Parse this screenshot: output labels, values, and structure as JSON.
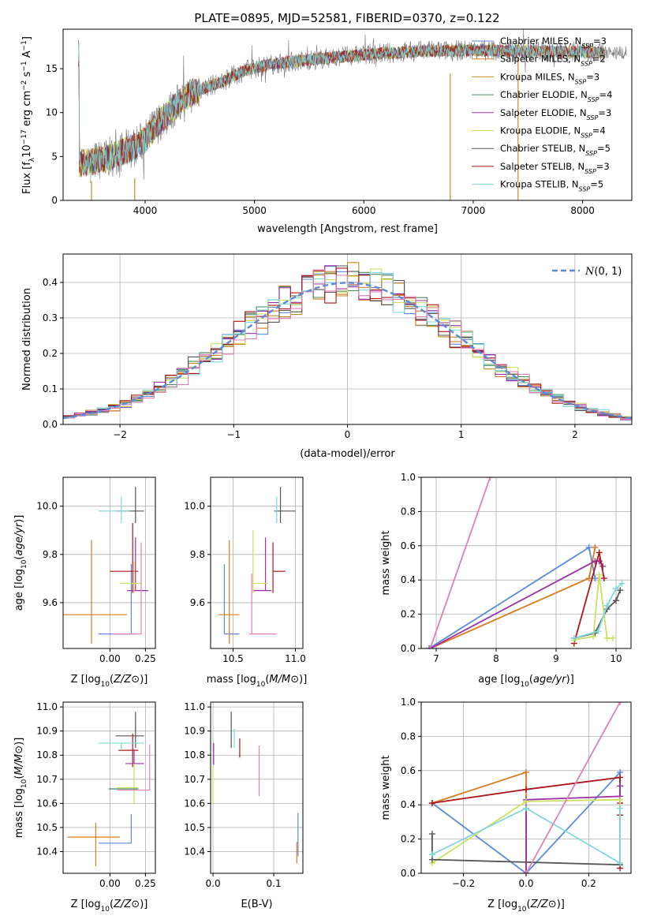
{
  "figure_title": "PLATE=0895, MJD=52581, FIBERID=0370, z=0.122",
  "colors": {
    "Chabrier MILES": "#5b8bd8",
    "Salpeter MILES": "#d97b1e",
    "Kroupa MILES": "#c08a2a",
    "Chabrier ELODIE": "#4f8a5f",
    "Salpeter ELODIE": "#9b30a8",
    "Kroupa ELODIE": "#cbe060",
    "Chabrier STELIB": "#555555",
    "Salpeter STELIB": "#b0151a",
    "Kroupa STELIB": "#7fd8dc",
    "pink": "#e07fb5",
    "grid": "#b0b0b0"
  },
  "chart_data": [
    {
      "id": "spectrum",
      "type": "line",
      "xlabel": "wavelength [Angstrom, rest frame]",
      "ylabel": "Flux [fλ10⁻¹⁷ erg cm⁻² s⁻¹ A⁻¹]",
      "xlim": [
        3250,
        8450
      ],
      "ylim": [
        0,
        19.5
      ],
      "xticks": [
        4000,
        5000,
        6000,
        7000,
        8000
      ],
      "yticks": [
        0,
        5,
        10,
        15
      ],
      "grid": false,
      "legend_position": "top-right",
      "legend": [
        {
          "label": "Chabrier MILES, N",
          "sub": "SSP",
          "eq": "=3",
          "color": "#5b8bd8"
        },
        {
          "label": "Salpeter MILES, N",
          "sub": "SSP",
          "eq": "=2",
          "color": "#d97b1e"
        },
        {
          "label": "Kroupa MILES, N",
          "sub": "SSP",
          "eq": "=3",
          "color": "#c08a2a"
        },
        {
          "label": "Chabrier ELODIE, N",
          "sub": "SSP",
          "eq": "=4",
          "color": "#4f8a5f"
        },
        {
          "label": "Salpeter ELODIE, N",
          "sub": "SSP",
          "eq": "=3",
          "color": "#9b30a8"
        },
        {
          "label": "Kroupa ELODIE, N",
          "sub": "SSP",
          "eq": "=4",
          "color": "#cbe060"
        },
        {
          "label": "Chabrier STELIB, N",
          "sub": "SSP",
          "eq": "=5",
          "color": "#555555"
        },
        {
          "label": "Salpeter STELIB, N",
          "sub": "SSP",
          "eq": "=3",
          "color": "#b0151a"
        },
        {
          "label": "Kroupa STELIB, N",
          "sub": "SSP",
          "eq": "=5",
          "color": "#7fd8dc"
        }
      ],
      "continuum": [
        [
          3400,
          4.2
        ],
        [
          3600,
          4.6
        ],
        [
          3700,
          5.0
        ],
        [
          3800,
          5.6
        ],
        [
          3900,
          6.1
        ],
        [
          4000,
          6.9
        ],
        [
          4100,
          8.6
        ],
        [
          4200,
          9.8
        ],
        [
          4300,
          11.0
        ],
        [
          4400,
          12.0
        ],
        [
          4500,
          12.6
        ],
        [
          4600,
          13.1
        ],
        [
          4700,
          13.4
        ],
        [
          4800,
          14.2
        ],
        [
          4900,
          14.7
        ],
        [
          5000,
          15.1
        ],
        [
          5200,
          15.6
        ],
        [
          5500,
          16.0
        ],
        [
          6000,
          16.6
        ],
        [
          6500,
          17.0
        ],
        [
          7000,
          17.1
        ],
        [
          7500,
          17.0
        ],
        [
          8000,
          16.9
        ],
        [
          8200,
          16.8
        ]
      ],
      "models_x_range": [
        3390,
        8200
      ],
      "observed_x_range": [
        3500,
        8400
      ]
    },
    {
      "id": "residuals",
      "type": "line",
      "xlabel": "(data-model)/error",
      "ylabel": "Normed distribution",
      "xlim": [
        -2.5,
        2.5
      ],
      "ylim": [
        0,
        0.48
      ],
      "xticks": [
        -2,
        -1,
        0,
        1,
        2
      ],
      "yticks": [
        0.0,
        0.1,
        0.2,
        0.3,
        0.4
      ],
      "grid": true,
      "legend_label": "N(0,1)",
      "reference_curve": "standard normal density",
      "bin_width": 0.1
    },
    {
      "id": "Z-age",
      "type": "scatter",
      "xlabel": "Z [log10(Z/Z⊙)]",
      "ylabel": "age [log10(age/yr)]",
      "xlim": [
        -0.33,
        0.32
      ],
      "ylim": [
        9.41,
        10.12
      ],
      "xticks": [
        0.0,
        0.25
      ],
      "yticks": [
        9.6,
        9.8,
        10.0
      ],
      "grid": true,
      "points": [
        {
          "model": "Chabrier MILES",
          "x": 0.15,
          "y": 9.47,
          "xerr": [
            0.23,
            0.02
          ],
          "yerr": [
            0.0,
            0.29
          ]
        },
        {
          "model": "Salpeter MILES",
          "x": -0.13,
          "y": 9.55,
          "xerr": [
            0.2,
            0.25
          ],
          "yerr": [
            0.12,
            0.31
          ]
        },
        {
          "model": "Chabrier STELIB",
          "x": 0.18,
          "y": 9.98,
          "xerr": [
            0.14,
            0.06
          ],
          "yerr": [
            0.05,
            0.1
          ]
        },
        {
          "model": "Salpeter STELIB",
          "x": 0.16,
          "y": 9.73,
          "xerr": [
            0.16,
            0.04
          ],
          "yerr": [
            0.09,
            0.2
          ]
        },
        {
          "model": "Salpeter ELODIE",
          "x": 0.18,
          "y": 9.65,
          "xerr": [
            0.06,
            0.09
          ],
          "yerr": [
            0.0,
            0.22
          ]
        },
        {
          "model": "Kroupa ELODIE",
          "x": 0.17,
          "y": 9.68,
          "xerr": [
            0.1,
            0.05
          ],
          "yerr": [
            0.04,
            0.09
          ]
        },
        {
          "model": "Kroupa STELIB",
          "x": 0.08,
          "y": 9.98,
          "xerr": [
            0.16,
            0.06
          ],
          "yerr": [
            0.05,
            0.06
          ]
        },
        {
          "model": "pink",
          "x": 0.22,
          "y": 9.47,
          "xerr": [
            0.2,
            0.0
          ],
          "yerr": [
            0.0,
            0.38
          ]
        }
      ]
    },
    {
      "id": "mass-age",
      "type": "scatter",
      "xlabel": "mass [log10(M/M⊙)]",
      "ylabel": "",
      "xlim": [
        10.32,
        11.06
      ],
      "ylim": [
        9.41,
        10.12
      ],
      "xticks": [
        10.5,
        11.0
      ],
      "yticks": [
        9.6,
        9.8,
        10.0
      ],
      "grid": true,
      "points": [
        {
          "model": "Chabrier MILES",
          "x": 10.43,
          "y": 9.47,
          "xerr": [
            0.0,
            0.12
          ],
          "yerr": [
            0.0,
            0.29
          ]
        },
        {
          "model": "Salpeter MILES",
          "x": 10.47,
          "y": 9.55,
          "xerr": [
            0.09,
            0.08
          ],
          "yerr": [
            0.12,
            0.31
          ]
        },
        {
          "model": "Chabrier STELIB",
          "x": 10.88,
          "y": 9.98,
          "xerr": [
            0.05,
            0.12
          ],
          "yerr": [
            0.05,
            0.1
          ]
        },
        {
          "model": "Salpeter STELIB",
          "x": 10.82,
          "y": 9.73,
          "xerr": [
            0.0,
            0.1
          ],
          "yerr": [
            0.09,
            0.12
          ]
        },
        {
          "model": "Salpeter ELODIE",
          "x": 10.76,
          "y": 9.65,
          "xerr": [
            0.1,
            0.05
          ],
          "yerr": [
            0.0,
            0.22
          ]
        },
        {
          "model": "Kroupa ELODIE",
          "x": 10.66,
          "y": 9.68,
          "xerr": [
            0.0,
            0.12
          ],
          "yerr": [
            0.04,
            0.22
          ]
        },
        {
          "model": "Kroupa STELIB",
          "x": 10.85,
          "y": 9.98,
          "xerr": [
            0.0,
            0.0
          ],
          "yerr": [
            0.05,
            0.06
          ]
        },
        {
          "model": "pink",
          "x": 10.65,
          "y": 9.47,
          "xerr": [
            0.02,
            0.2
          ],
          "yerr": [
            0.0,
            0.25
          ]
        }
      ]
    },
    {
      "id": "weights-age",
      "type": "line",
      "xlabel": "age [log10(age/yr)]",
      "ylabel": "mass weight",
      "xlim": [
        6.75,
        10.25
      ],
      "ylim": [
        0,
        1.0
      ],
      "xticks": [
        7,
        8,
        9,
        10
      ],
      "yticks": [
        0.0,
        0.2,
        0.4,
        0.6,
        0.8,
        1.0
      ],
      "grid": true,
      "series": [
        {
          "model": "Chabrier MILES",
          "x": [
            6.88,
            9.55,
            9.65
          ],
          "y": [
            0.0,
            0.59,
            0.41
          ]
        },
        {
          "model": "Salpeter MILES",
          "x": [
            6.9,
            9.55,
            9.65
          ],
          "y": [
            0.0,
            0.41,
            0.59
          ]
        },
        {
          "model": "Salpeter ELODIE",
          "x": [
            6.9,
            9.65,
            9.72,
            9.78
          ],
          "y": [
            0.0,
            0.51,
            0.51,
            0.48
          ]
        },
        {
          "model": "Salpeter STELIB",
          "x": [
            9.3,
            9.72,
            9.8
          ],
          "y": [
            0.03,
            0.56,
            0.41
          ]
        },
        {
          "model": "Chabrier STELIB",
          "x": [
            9.3,
            9.65,
            9.85,
            10.0,
            10.07
          ],
          "y": [
            0.06,
            0.09,
            0.23,
            0.28,
            0.34
          ]
        },
        {
          "model": "Kroupa ELODIE",
          "x": [
            9.3,
            9.62,
            9.72,
            9.85,
            9.95
          ],
          "y": [
            0.05,
            0.07,
            0.43,
            0.06,
            0.06
          ]
        },
        {
          "model": "Kroupa STELIB",
          "x": [
            9.3,
            9.7,
            9.85,
            10.0,
            10.1
          ],
          "y": [
            0.06,
            0.1,
            0.25,
            0.35,
            0.38
          ]
        },
        {
          "model": "pink",
          "x": [
            6.9,
            7.9
          ],
          "y": [
            0.0,
            1.0
          ]
        }
      ]
    },
    {
      "id": "Z-mass",
      "type": "scatter",
      "xlabel": "Z [log10(Z/Z⊙)]",
      "ylabel": "mass [log10(M/M⊙)]",
      "xlim": [
        -0.33,
        0.32
      ],
      "ylim": [
        10.31,
        11.02
      ],
      "xticks": [
        0.0,
        0.25
      ],
      "yticks": [
        10.4,
        10.5,
        10.6,
        10.7,
        10.8,
        10.9,
        11.0
      ],
      "grid": true,
      "points": [
        {
          "model": "Chabrier MILES",
          "x": 0.15,
          "y": 10.435,
          "xerr": [
            0.23,
            0.0
          ],
          "yerr": [
            0.0,
            0.12
          ]
        },
        {
          "model": "Salpeter MILES",
          "x": -0.1,
          "y": 10.46,
          "xerr": [
            0.2,
            0.17
          ],
          "yerr": [
            0.12,
            0.06
          ]
        },
        {
          "model": "Chabrier STELIB",
          "x": 0.18,
          "y": 10.88,
          "xerr": [
            0.14,
            0.06
          ],
          "yerr": [
            0.05,
            0.1
          ]
        },
        {
          "model": "Salpeter STELIB",
          "x": 0.16,
          "y": 10.82,
          "xerr": [
            0.1,
            0.04
          ],
          "yerr": [
            0.07,
            0.07
          ]
        },
        {
          "model": "Salpeter ELODIE",
          "x": 0.17,
          "y": 10.765,
          "xerr": [
            0.06,
            0.07
          ],
          "yerr": [
            0.0,
            0.06
          ]
        },
        {
          "model": "Kroupa ELODIE",
          "x": 0.17,
          "y": 10.665,
          "xerr": [
            0.12,
            0.03
          ],
          "yerr": [
            0.07,
            0.1
          ]
        },
        {
          "model": "Kroupa STELIB",
          "x": 0.08,
          "y": 10.85,
          "xerr": [
            0.16,
            0.16
          ],
          "yerr": [
            0.03,
            0.0
          ]
        },
        {
          "model": "Chabrier ELODIE",
          "x": 0.15,
          "y": 10.66,
          "xerr": [
            0.16,
            0.05
          ],
          "yerr": [
            0.0,
            0.0
          ]
        },
        {
          "model": "pink",
          "x": 0.28,
          "y": 10.655,
          "xerr": [
            0.23,
            0.0
          ],
          "yerr": [
            0.0,
            0.19
          ]
        }
      ]
    },
    {
      "id": "EBV-mass",
      "type": "scatter",
      "xlabel": "E(B-V)",
      "ylabel": "",
      "xlim": [
        -0.004,
        0.148
      ],
      "ylim": [
        10.31,
        11.02
      ],
      "xticks": [
        0.0,
        0.1
      ],
      "yticks": [
        10.4,
        10.5,
        10.6,
        10.7,
        10.8,
        10.9,
        11.0
      ],
      "grid": true,
      "points": [
        {
          "model": "Chabrier MILES",
          "x": 0.14,
          "y": 10.47,
          "xerr": [
            0.0,
            0.0
          ],
          "yerr": [
            0.09,
            0.09
          ]
        },
        {
          "model": "Salpeter MILES",
          "x": 0.138,
          "y": 10.44,
          "xerr": [
            0.0,
            0.0
          ],
          "yerr": [
            0.09,
            0.0
          ]
        },
        {
          "model": "Chabrier STELIB",
          "x": 0.03,
          "y": 10.9,
          "xerr": [
            0.0,
            0.0
          ],
          "yerr": [
            0.07,
            0.08
          ]
        },
        {
          "model": "Salpeter STELIB",
          "x": 0.044,
          "y": 10.83,
          "xerr": [
            0.0,
            0.0
          ],
          "yerr": [
            0.04,
            0.04
          ]
        },
        {
          "model": "Salpeter ELODIE",
          "x": 0.001,
          "y": 10.8,
          "xerr": [
            0.0,
            0.0
          ],
          "yerr": [
            0.04,
            0.05
          ]
        },
        {
          "model": "Kroupa ELODIE",
          "x": 0.0,
          "y": 10.68,
          "xerr": [
            0.0,
            0.0
          ],
          "yerr": [
            0.08,
            0.08
          ]
        },
        {
          "model": "Kroupa STELIB",
          "x": 0.035,
          "y": 10.87,
          "xerr": [
            0.0,
            0.0
          ],
          "yerr": [
            0.04,
            0.04
          ]
        },
        {
          "model": "pink",
          "x": 0.076,
          "y": 10.74,
          "xerr": [
            0.0,
            0.0
          ],
          "yerr": [
            0.11,
            0.1
          ]
        }
      ]
    },
    {
      "id": "weights-Z",
      "type": "line",
      "xlabel": "Z [log10(Z/Z⊙)]",
      "ylabel": "mass weight",
      "xlim": [
        -0.335,
        0.335
      ],
      "ylim": [
        0,
        1.0
      ],
      "xticks": [
        -0.2,
        0.0,
        0.2
      ],
      "yticks": [
        0.0,
        0.2,
        0.4,
        0.6,
        0.8,
        1.0
      ],
      "grid": true,
      "series": [
        {
          "model": "Chabrier MILES",
          "x": [
            -0.3,
            0.0,
            0.3,
            0.3
          ],
          "y": [
            0.41,
            0.0,
            0.59,
            0.05
          ]
        },
        {
          "model": "Salpeter MILES",
          "x": [
            -0.3,
            0.0,
            0.0
          ],
          "y": [
            0.41,
            0.59,
            0.0
          ]
        },
        {
          "model": "Salpeter STELIB",
          "x": [
            -0.3,
            0.0,
            0.3,
            0.3,
            0.3,
            0.3
          ],
          "y": [
            0.41,
            0.49,
            0.56,
            0.41,
            0.34,
            0.03
          ]
        },
        {
          "model": "Salpeter ELODIE",
          "x": [
            0.0,
            0.0,
            0.3,
            0.3
          ],
          "y": [
            0.0,
            0.43,
            0.45,
            0.51
          ]
        },
        {
          "model": "Kroupa ELODIE",
          "x": [
            -0.3,
            0.0,
            0.3,
            0.3
          ],
          "y": [
            0.06,
            0.42,
            0.43,
            0.06
          ]
        },
        {
          "model": "Chabrier STELIB",
          "x": [
            -0.3,
            -0.3,
            0.3
          ],
          "y": [
            0.23,
            0.08,
            0.05
          ]
        },
        {
          "model": "Kroupa STELIB",
          "x": [
            -0.3,
            0.0,
            0.3,
            0.3
          ],
          "y": [
            0.11,
            0.38,
            0.06,
            0.38
          ]
        },
        {
          "model": "pink",
          "x": [
            0.0,
            0.3
          ],
          "y": [
            0.0,
            1.0
          ]
        }
      ]
    }
  ]
}
